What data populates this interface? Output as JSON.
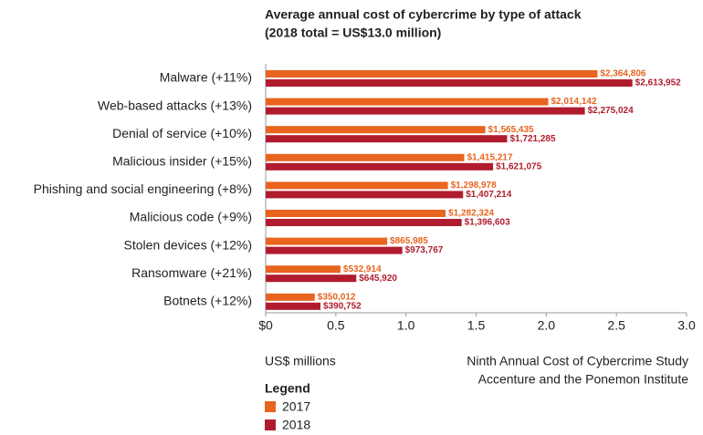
{
  "chart_data": {
    "type": "hbar",
    "title": "Average annual cost of cybercrime by type of attack",
    "subtitle": "(2018 total = US$13.0 million)",
    "x_label": "US$ millions",
    "source": [
      "Ninth Annual Cost of Cybercrime Study",
      "Accenture and the Ponemon Institute"
    ],
    "legend_title": "Legend",
    "categories": [
      "Malware (+11%)",
      "Web-based attacks (+13%)",
      "Denial of service (+10%)",
      "Malicious insider (+15%)",
      "Phishing and social engineering (+8%)",
      "Malicious code (+9%)",
      "Stolen devices (+12%)",
      "Ransomware (+21%)",
      "Botnets (+12%)"
    ],
    "series": [
      {
        "name": "2017",
        "color": "#e8641f",
        "values": [
          2.364806,
          2.014142,
          1.565435,
          1.415217,
          1.298978,
          1.282324,
          0.865985,
          0.532914,
          0.350012
        ],
        "value_labels": [
          "$2,364,806",
          "$2,014,142",
          "$1,565,435",
          "$1,415,217",
          "$1,298,978",
          "$1,282,324",
          "$865,985",
          "$532,914",
          "$350,012"
        ]
      },
      {
        "name": "2018",
        "color": "#b01c2e",
        "values": [
          2.613952,
          2.275024,
          1.721285,
          1.621075,
          1.407214,
          1.396603,
          0.973767,
          0.64592,
          0.390752
        ],
        "value_labels": [
          "$2,613,952",
          "$2,275,024",
          "$1,721,285",
          "$1,621,075",
          "$1,407,214",
          "$1,396,603",
          "$973,767",
          "$645,920",
          "$390,752"
        ]
      }
    ],
    "xlim": [
      0,
      3
    ],
    "xticks": [
      {
        "value": 0,
        "label": "$0"
      },
      0.5,
      {
        "value": 1,
        "label": "1.0"
      },
      1.5,
      {
        "value": 2,
        "label": "2.0"
      },
      2.5,
      {
        "value": 3,
        "label": "3.0"
      }
    ],
    "grid": false
  }
}
